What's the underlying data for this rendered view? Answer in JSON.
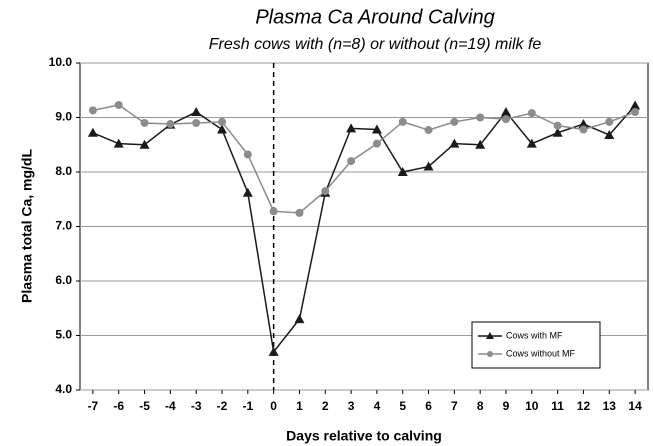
{
  "chart_data": {
    "type": "line",
    "title": "Plasma Ca Around Calving",
    "subtitle": "Fresh cows with (n=8) or without (n=19) milk fe",
    "x_label": "Days relative to calving",
    "y_label": "Plasma total Ca, mg/dL",
    "x": [
      -7,
      -6,
      -5,
      -4,
      -3,
      -2,
      -1,
      0,
      1,
      2,
      3,
      4,
      5,
      6,
      7,
      8,
      9,
      10,
      11,
      12,
      13,
      14
    ],
    "xlim": [
      -7.5,
      14.5
    ],
    "ylim": [
      4,
      10
    ],
    "yticks": [
      {
        "value": 4,
        "label": "4.0"
      },
      {
        "value": 5,
        "label": "5.0"
      },
      {
        "value": 6,
        "label": "6.0"
      },
      {
        "value": 7,
        "label": "7.0"
      },
      {
        "value": 8,
        "label": "8.0"
      },
      {
        "value": 9,
        "label": "9.0"
      },
      {
        "value": 10,
        "label": "10.0"
      }
    ],
    "grid": true,
    "vline": 0,
    "legend": "lower right",
    "series": [
      {
        "name": "Cows with MF",
        "color": "#1a1a1a",
        "marker": "triangle",
        "values": [
          8.72,
          8.52,
          8.5,
          8.87,
          9.1,
          8.78,
          7.62,
          4.7,
          5.3,
          7.62,
          8.8,
          8.78,
          8.0,
          8.1,
          8.52,
          8.5,
          9.1,
          8.52,
          8.72,
          8.88,
          8.68,
          9.22
        ]
      },
      {
        "name": "Cows without MF",
        "color": "#8c8c8c",
        "marker": "circle",
        "values": [
          9.13,
          9.23,
          8.9,
          8.88,
          8.9,
          8.92,
          8.32,
          7.28,
          7.25,
          7.65,
          8.2,
          8.52,
          8.92,
          8.77,
          8.92,
          9.0,
          8.97,
          9.08,
          8.85,
          8.78,
          8.92,
          9.1
        ]
      }
    ]
  }
}
